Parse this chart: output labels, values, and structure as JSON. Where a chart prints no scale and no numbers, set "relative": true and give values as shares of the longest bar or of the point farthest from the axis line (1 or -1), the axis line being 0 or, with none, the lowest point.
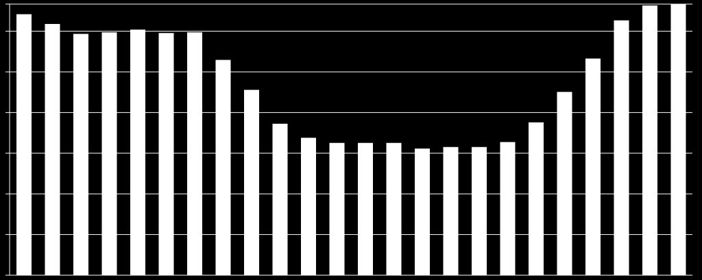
{
  "chart_data": {
    "type": "bar",
    "relative": true,
    "grid": "y",
    "color": "#ffffff",
    "categories": [
      null,
      null,
      null,
      null,
      null,
      null,
      null,
      null,
      null,
      null,
      null,
      null,
      null,
      null,
      null,
      null,
      null,
      null,
      null,
      null,
      null,
      null,
      null,
      null
    ],
    "values": [
      0.963,
      0.927,
      0.89,
      0.896,
      0.906,
      0.893,
      0.896,
      0.794,
      0.684,
      0.559,
      0.507,
      0.488,
      0.488,
      0.488,
      0.467,
      0.473,
      0.473,
      0.491,
      0.564,
      0.676,
      0.799,
      0.94,
      0.995,
      1
    ]
  }
}
